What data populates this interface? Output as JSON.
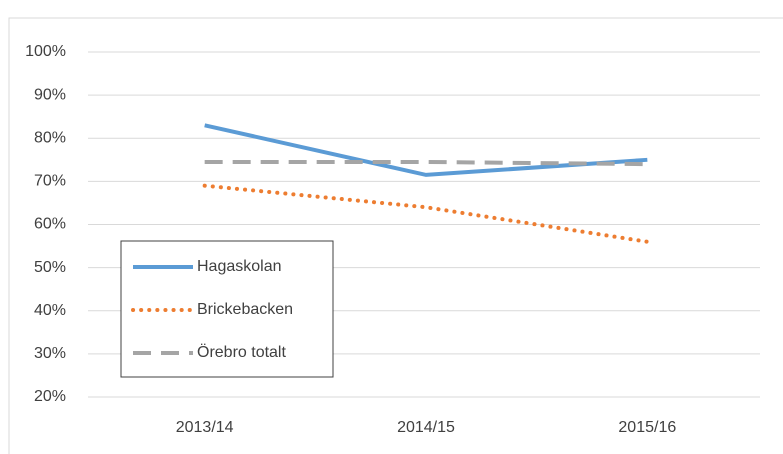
{
  "chart_data": {
    "type": "line",
    "categories": [
      "2013/14",
      "2014/15",
      "2015/16"
    ],
    "series": [
      {
        "name": "Hagaskolan",
        "color": "#5b9bd5",
        "dash": "solid",
        "values": [
          83,
          71.5,
          75
        ]
      },
      {
        "name": "Brickebacken",
        "color": "#ed7d31",
        "dash": "dot",
        "values": [
          69,
          64,
          56
        ]
      },
      {
        "name": "Örebro totalt",
        "color": "#a5a5a5",
        "dash": "dash",
        "values": [
          74.5,
          74.5,
          74
        ]
      }
    ],
    "ylim": [
      20,
      100
    ],
    "yticks": [
      {
        "value": 20,
        "label": "20%"
      },
      {
        "value": 30,
        "label": "30%"
      },
      {
        "value": 40,
        "label": "40%"
      },
      {
        "value": 50,
        "label": "50%"
      },
      {
        "value": 60,
        "label": "60%"
      },
      {
        "value": 70,
        "label": "70%"
      },
      {
        "value": 80,
        "label": "80%"
      },
      {
        "value": 90,
        "label": "90%"
      },
      {
        "value": 100,
        "label": "100%"
      }
    ],
    "grid": true,
    "legend": "lower-left"
  }
}
